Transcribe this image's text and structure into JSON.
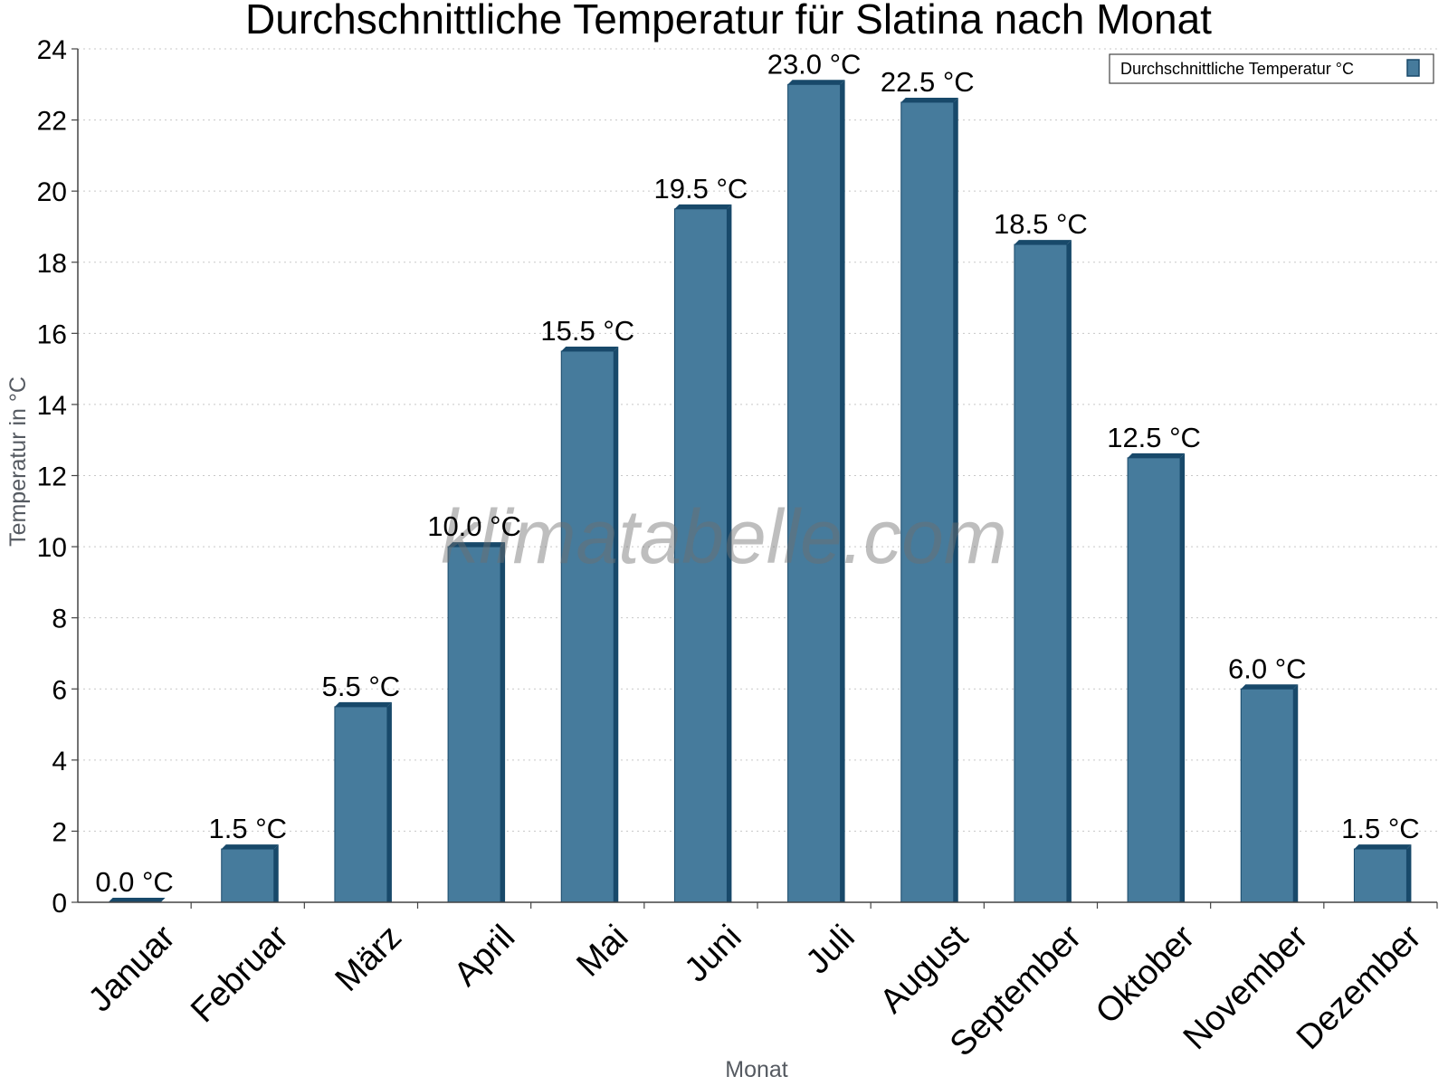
{
  "watermark": "klimatabelle.com",
  "colors": {
    "bar": "#467b9c",
    "bar_dark": "#18496a",
    "grid": "#c8c8c8",
    "axis": "#444444"
  },
  "chart_data": {
    "type": "bar",
    "title": "Durchschnittliche Temperatur für Slatina nach Monat",
    "xlabel": "Monat",
    "ylabel": "Temperatur in °C",
    "ylim": [
      0,
      24
    ],
    "yticks": [
      0,
      2,
      4,
      6,
      8,
      10,
      12,
      14,
      16,
      18,
      20,
      22,
      24
    ],
    "grid": "horizontal dotted",
    "legend_position": "top-right",
    "categories": [
      "Januar",
      "Februar",
      "März",
      "April",
      "Mai",
      "Juni",
      "Juli",
      "August",
      "September",
      "Oktober",
      "November",
      "Dezember"
    ],
    "series": [
      {
        "name": "Durchschnittliche Temperatur °C",
        "values": [
          0.0,
          1.5,
          5.5,
          10.0,
          15.5,
          19.5,
          23.0,
          22.5,
          18.5,
          12.5,
          6.0,
          1.5
        ],
        "labels": [
          "0.0 °C",
          "1.5 °C",
          "5.5 °C",
          "10.0 °C",
          "15.5 °C",
          "19.5 °C",
          "23.0 °C",
          "22.5 °C",
          "18.5 °C",
          "12.5 °C",
          "6.0 °C",
          "1.5 °C"
        ]
      }
    ]
  }
}
